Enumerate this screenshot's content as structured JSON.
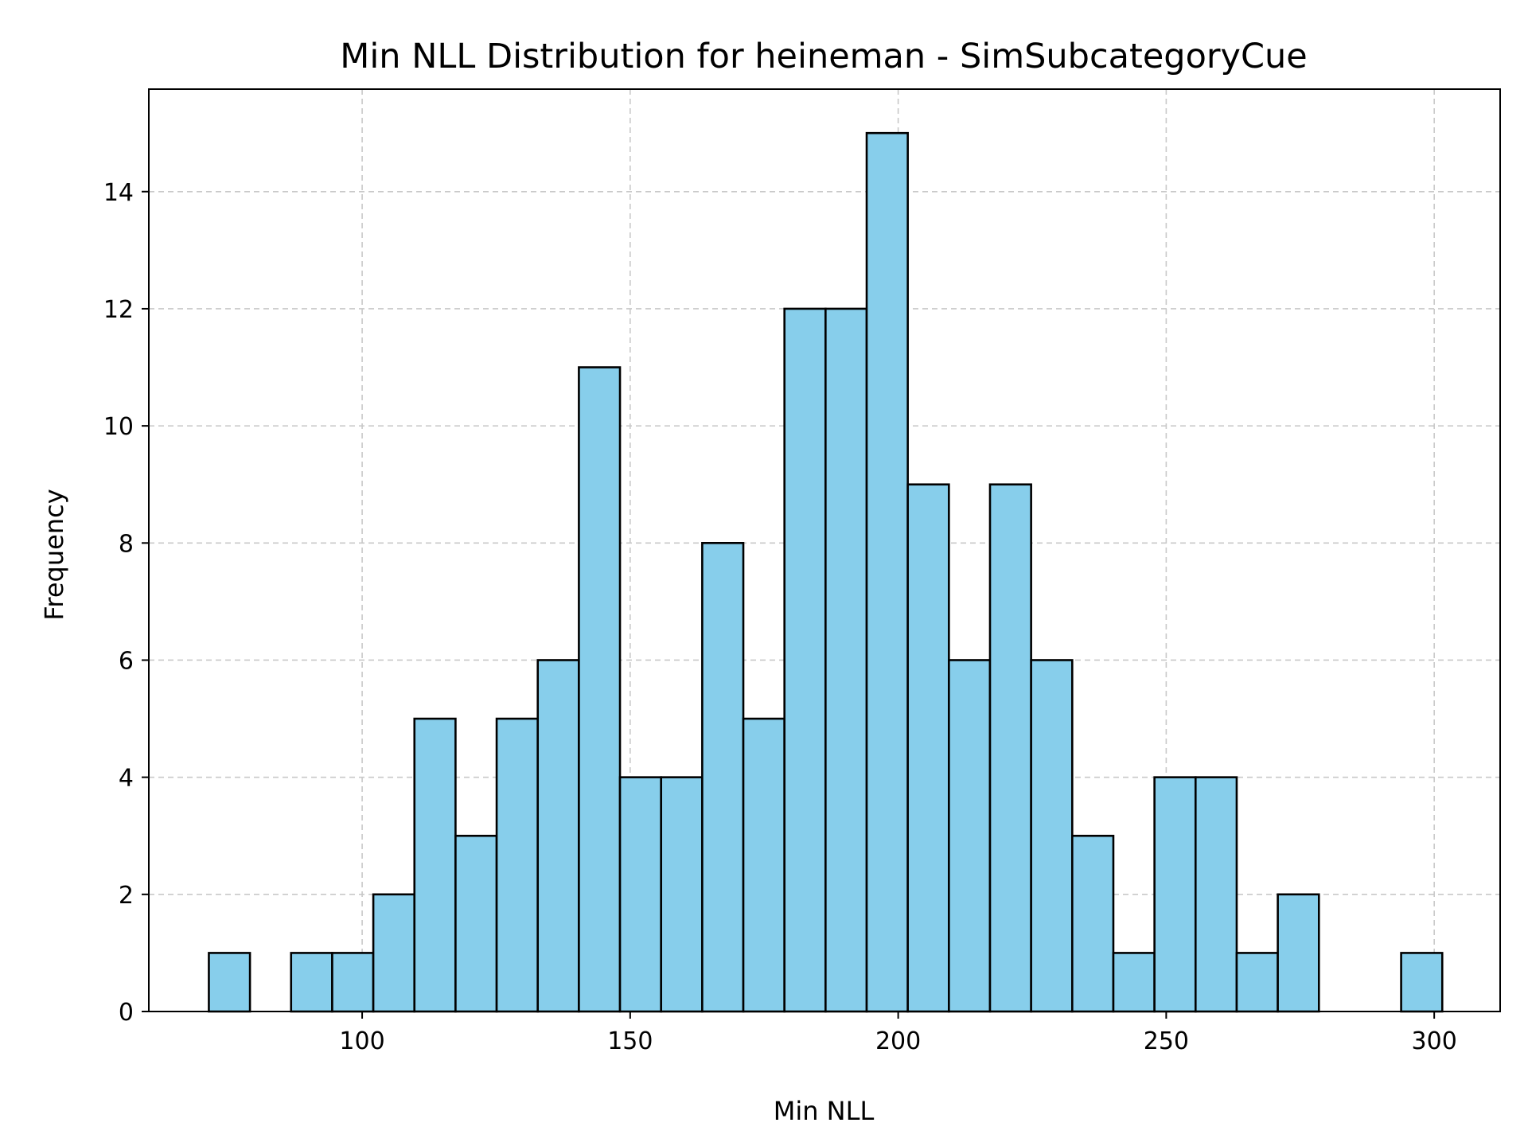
{
  "chart_data": {
    "type": "bar",
    "title": "Min NLL Distribution for heineman - SimSubcategoryCue",
    "xlabel": "Min NLL",
    "ylabel": "Frequency",
    "bins": {
      "start": 71.4,
      "width": 7.67,
      "counts": [
        1,
        0,
        1,
        1,
        2,
        5,
        3,
        5,
        6,
        11,
        4,
        4,
        8,
        5,
        12,
        12,
        15,
        9,
        6,
        9,
        6,
        3,
        1,
        4,
        4,
        1,
        2,
        0,
        0,
        1
      ]
    },
    "xlim": [
      60.2,
      312.3
    ],
    "ylim": [
      0,
      15.75
    ],
    "xticks": [
      100,
      150,
      200,
      250,
      300
    ],
    "yticks": [
      0,
      2,
      4,
      6,
      8,
      10,
      12,
      14
    ],
    "bar_color": "#87ceeb",
    "edge_color": "#000000",
    "grid": true,
    "grid_style": "dashed"
  }
}
